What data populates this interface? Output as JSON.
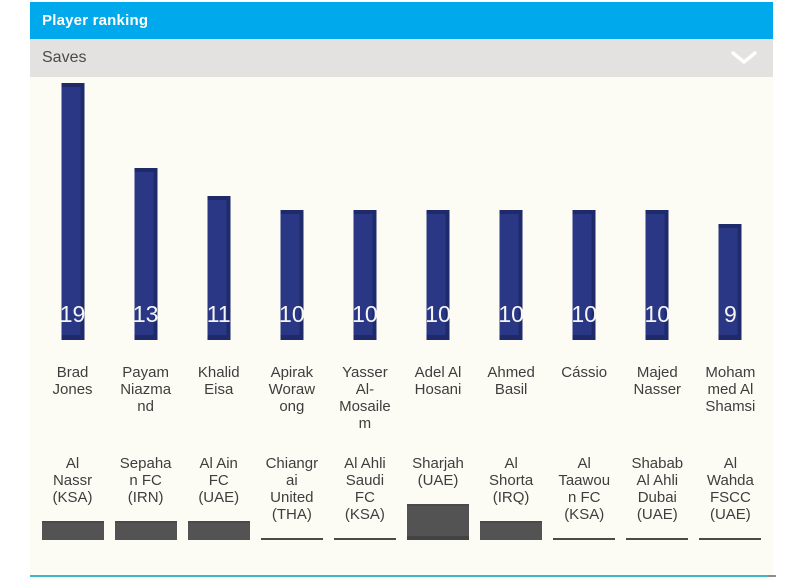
{
  "header": {
    "title": "Player ranking"
  },
  "filter": {
    "selected": "Saves"
  },
  "players": [
    {
      "name": "Brad Jones",
      "team": "Al Nassr (KSA)",
      "saves": 19
    },
    {
      "name": "Payam Niazmand",
      "team": "Sepahan FC (IRN)",
      "saves": 13
    },
    {
      "name": "Khalid Eisa",
      "team": "Al Ain FC (UAE)",
      "saves": 11
    },
    {
      "name": "Apirak Worawong",
      "team": "Chiangrai United (THA)",
      "saves": 10
    },
    {
      "name": "Yasser Al-Mosailem",
      "team": "Al Ahli Saudi FC (KSA)",
      "saves": 10
    },
    {
      "name": "Adel Al Hosani",
      "team": "Sharjah (UAE)",
      "saves": 10
    },
    {
      "name": "Ahmed Basil",
      "team": "Al Shorta (IRQ)",
      "saves": 10
    },
    {
      "name": "Cássio",
      "team": "Al Taawoun FC (KSA)",
      "saves": 10
    },
    {
      "name": "Majed Nasser",
      "team": "Shabab Al Ahli Dubai (UAE)",
      "saves": 10
    },
    {
      "name": "Mohammed Al Shamsi",
      "team": "Al Wahda FSCC (UAE)",
      "saves": 9
    }
  ],
  "chart_data": {
    "type": "bar",
    "title": "Player ranking",
    "metric": "Saves",
    "categories": [
      "Brad Jones",
      "Payam Niazmand",
      "Khalid Eisa",
      "Apirak Worawong",
      "Yasser Al-Mosailem",
      "Adel Al Hosani",
      "Ahmed Basil",
      "Cássio",
      "Majed Nasser",
      "Mohammed Al Shamsi"
    ],
    "team_labels": [
      "Al Nassr (KSA)",
      "Sepahan FC (IRN)",
      "Al Ain FC (UAE)",
      "Chiangrai United (THA)",
      "Al Ahli Saudi FC (KSA)",
      "Sharjah (UAE)",
      "Al Shorta (IRQ)",
      "Al Taawoun FC (KSA)",
      "Shabab Al Ahli Dubai (UAE)",
      "Al Wahda FSCC (UAE)"
    ],
    "values": [
      19,
      13,
      11,
      10,
      10,
      10,
      10,
      10,
      10,
      9
    ],
    "xlabel": "",
    "ylabel": "Saves",
    "ylim": [
      0,
      19
    ],
    "grid": false,
    "legend": false,
    "value_labels": "inside-bar-bottom"
  },
  "colors": {
    "header_bg": "#00a9ec",
    "dropdown_bg": "#e3e2e0",
    "bar_fill": "#2a3784",
    "bar_edge": "#1e2a6a",
    "value_text": "#f5f5f5",
    "label_text": "#3e3e3e",
    "logo_placeholder": "#535353",
    "bottom_line": "#3fb7cb",
    "widget_bg": "#fcfcf5"
  },
  "icons": {
    "dropdown": "chevron-down-icon"
  }
}
